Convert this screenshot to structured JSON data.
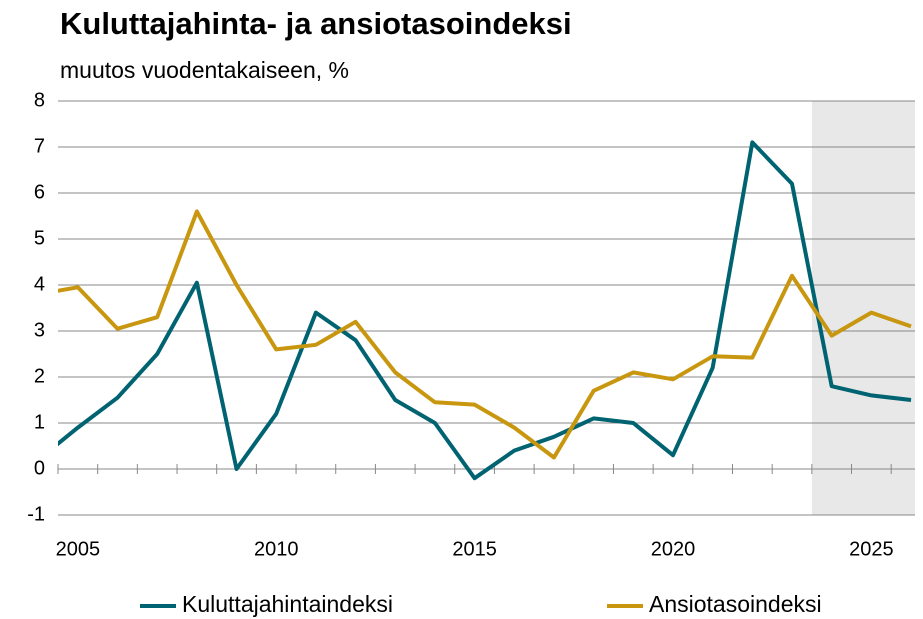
{
  "chart_data": {
    "type": "line",
    "title": "Kuluttajahinta- ja ansiotasoindeksi",
    "subtitle": "muutos vuodentakaiseen, %",
    "x": [
      2004,
      2005,
      2006,
      2007,
      2008,
      2009,
      2010,
      2011,
      2012,
      2013,
      2014,
      2015,
      2016,
      2017,
      2018,
      2019,
      2020,
      2021,
      2022,
      2023,
      2024,
      2025,
      2026
    ],
    "series": [
      {
        "name": "Kuluttajahintaindeksi",
        "color": "#006371",
        "values": [
          0.2,
          0.9,
          1.55,
          2.5,
          4.05,
          0.0,
          1.2,
          3.4,
          2.8,
          1.5,
          1.0,
          -0.2,
          0.4,
          0.7,
          1.1,
          1.0,
          0.3,
          2.2,
          7.1,
          6.2,
          1.8,
          1.6,
          1.5
        ]
      },
      {
        "name": "Ansiotasoindeksi",
        "color": "#c8960f",
        "values": [
          3.8,
          3.95,
          3.05,
          3.3,
          5.6,
          4.0,
          2.6,
          2.7,
          3.2,
          2.1,
          1.45,
          1.4,
          0.9,
          0.25,
          1.7,
          2.1,
          1.95,
          2.45,
          2.42,
          4.2,
          2.9,
          3.4,
          3.1
        ]
      }
    ],
    "xlim": [
      2004.5,
      2026.1
    ],
    "xticks": [
      2005,
      2010,
      2015,
      2020,
      2025
    ],
    "xminor_ticks": [
      2004.5,
      2005.5,
      2006.5,
      2007.5,
      2008.5,
      2009.5,
      2010.5,
      2011.5,
      2012.5,
      2013.5,
      2014.5,
      2015.5,
      2016.5,
      2017.5,
      2018.5,
      2019.5,
      2020.5,
      2021.5,
      2022.5,
      2023.5,
      2024.5,
      2025.5
    ],
    "ylim": [
      -1,
      8
    ],
    "yticks": [
      -1,
      0,
      1,
      2,
      3,
      4,
      5,
      6,
      7,
      8
    ],
    "grid": true,
    "forecast_start": 2023.5,
    "forecast_color": "#e8e8e8",
    "legend": "bottom"
  }
}
